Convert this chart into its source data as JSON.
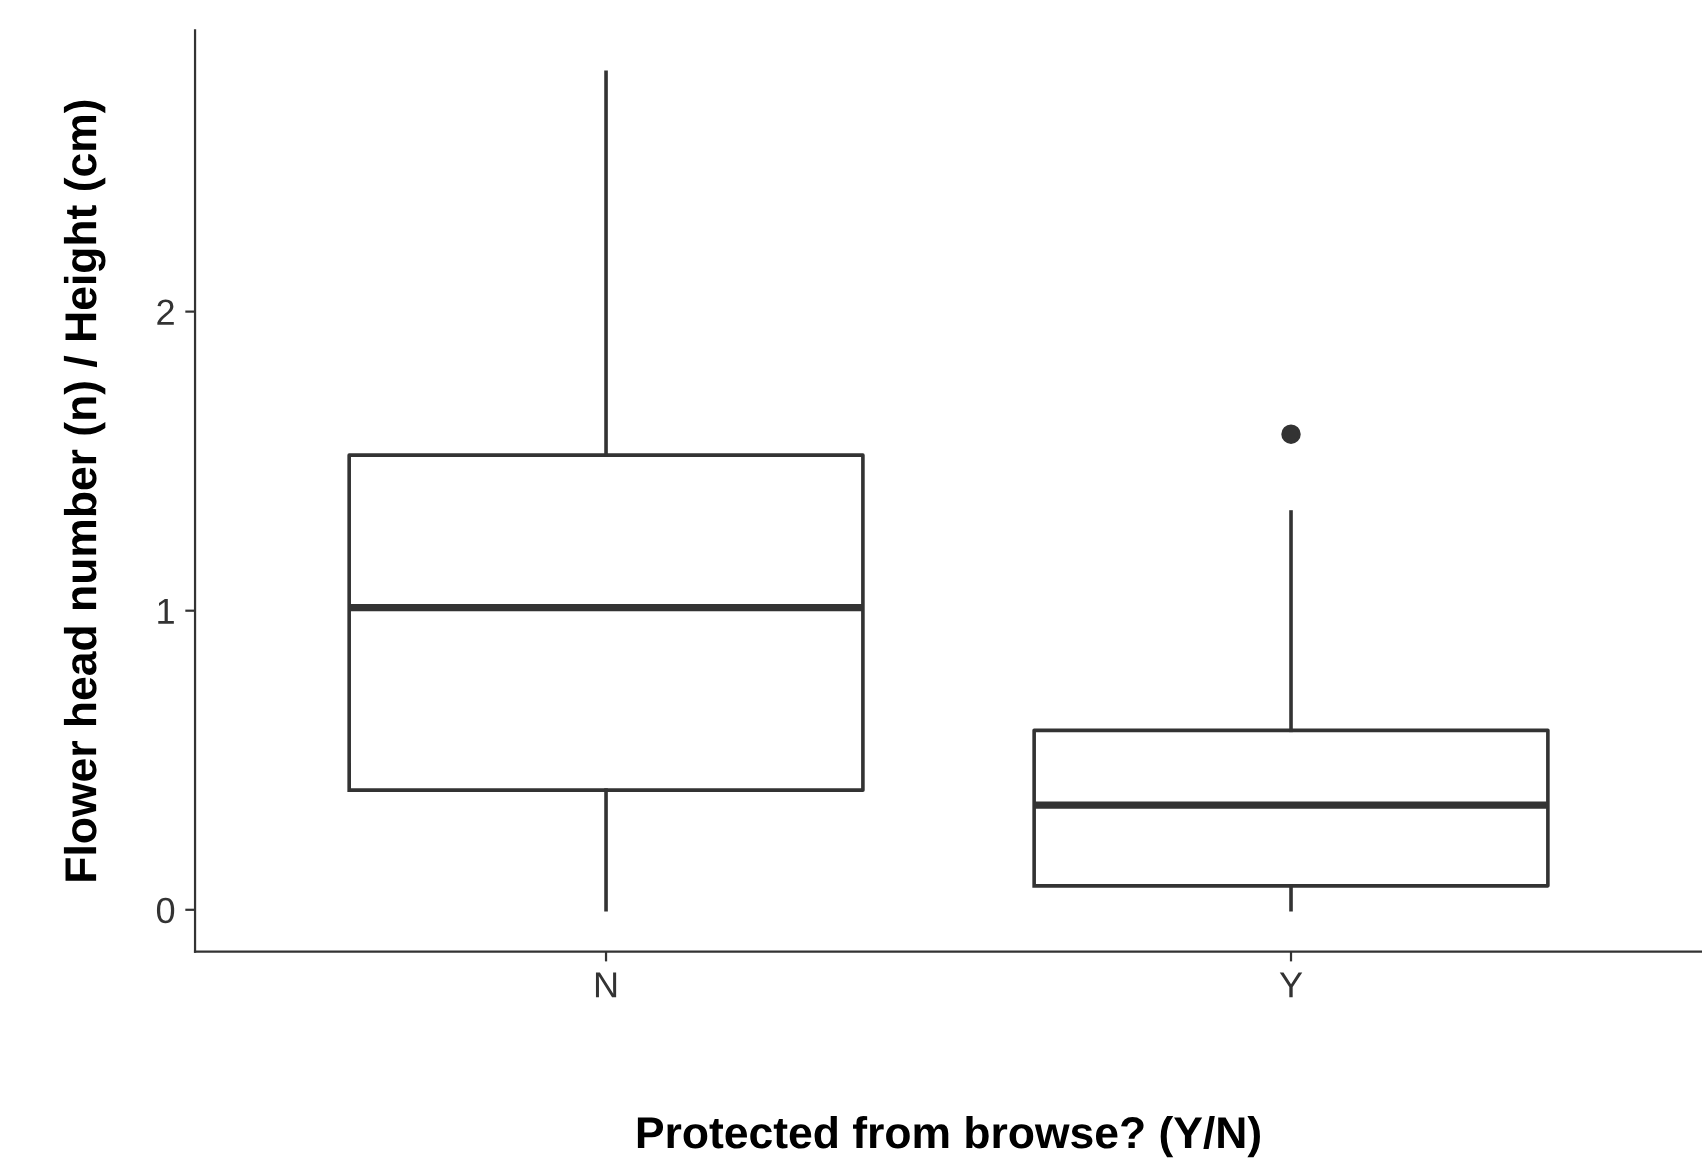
{
  "chart_data": {
    "type": "box",
    "xlabel": "Protected from browse? (Y/N)",
    "ylabel": "Flower head number (n) / Height (cm)",
    "categories": [
      "N",
      "Y"
    ],
    "boxes": [
      {
        "low": 0.0,
        "q1": 0.4,
        "median": 1.01,
        "q3": 1.52,
        "high": 2.8
      },
      {
        "low": 0.0,
        "q1": 0.08,
        "median": 0.35,
        "q3": 0.6,
        "high": 1.33,
        "outliers": [
          1.59
        ]
      }
    ],
    "ylim": [
      -0.14,
      2.94
    ],
    "yticks": [
      0,
      1,
      2
    ],
    "grid": false,
    "legend": false
  }
}
